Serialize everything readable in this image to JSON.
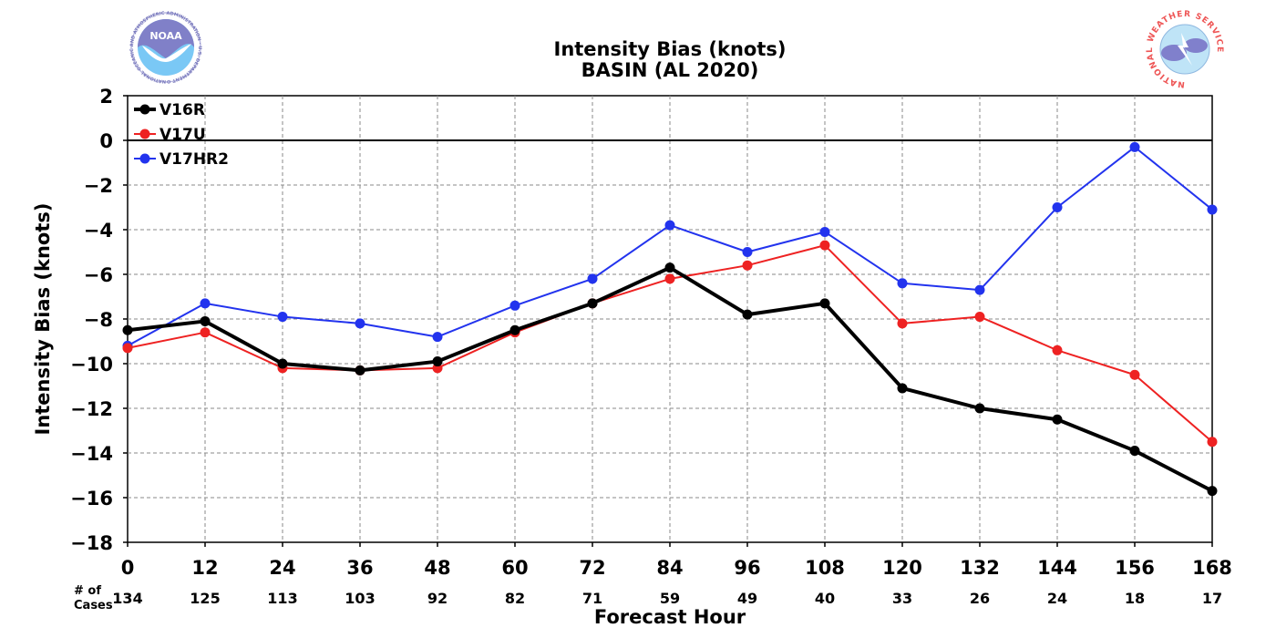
{
  "chart_data": {
    "type": "line",
    "title": "Intensity Bias (knots)",
    "subtitle": "BASIN (AL 2020)",
    "xlabel": "Forecast Hour",
    "ylabel": "Intensity Bias (knots)",
    "cases_label_line1": "# of",
    "cases_label_line2": "Cases",
    "x": [
      0,
      12,
      24,
      36,
      48,
      60,
      72,
      84,
      96,
      108,
      120,
      132,
      144,
      156,
      168
    ],
    "x_tick_labels": [
      "0",
      "12",
      "24",
      "36",
      "48",
      "60",
      "72",
      "84",
      "96",
      "108",
      "120",
      "132",
      "144",
      "156",
      "168"
    ],
    "cases": [
      "134",
      "125",
      "113",
      "103",
      "92",
      "82",
      "71",
      "59",
      "49",
      "40",
      "33",
      "26",
      "24",
      "18",
      "17"
    ],
    "xlim": [
      0,
      168
    ],
    "ylim": [
      -18,
      2
    ],
    "y_ticks": [
      2,
      0,
      -2,
      -4,
      -6,
      -8,
      -10,
      -12,
      -14,
      -16,
      -18
    ],
    "y_tick_labels": [
      "2",
      "0",
      "−2",
      "−4",
      "−6",
      "−8",
      "−10",
      "−12",
      "−14",
      "−16",
      "−18"
    ],
    "grid": true,
    "legend_position": "top-left",
    "series": [
      {
        "name": "V16R",
        "color": "#000000",
        "values": [
          -8.5,
          -8.1,
          -10.0,
          -10.3,
          -9.9,
          -8.5,
          -7.3,
          -5.7,
          -7.8,
          -7.3,
          -11.1,
          -12.0,
          -12.5,
          -13.9,
          -15.7
        ]
      },
      {
        "name": "V17U",
        "color": "#ee2222",
        "values": [
          -9.3,
          -8.6,
          -10.2,
          -10.3,
          -10.2,
          -8.6,
          -7.3,
          -6.2,
          -5.6,
          -4.7,
          -8.2,
          -7.9,
          -9.4,
          -10.5,
          -13.5
        ]
      },
      {
        "name": "V17HR2",
        "color": "#2233ee",
        "values": [
          -9.2,
          -7.3,
          -7.9,
          -8.2,
          -8.8,
          -7.4,
          -6.2,
          -3.8,
          -5.0,
          -4.1,
          -6.4,
          -6.7,
          -3.0,
          -0.3,
          -3.1
        ]
      }
    ]
  },
  "logos": {
    "noaa": {
      "text": "NOAA",
      "ring_text": "NATIONAL OCEANIC AND ATMOSPHERIC ADMINISTRATION · U.S. DEPARTMENT OF COMMERCE"
    },
    "nws": {
      "ring_text": "NATIONAL WEATHER SERVICE"
    }
  }
}
